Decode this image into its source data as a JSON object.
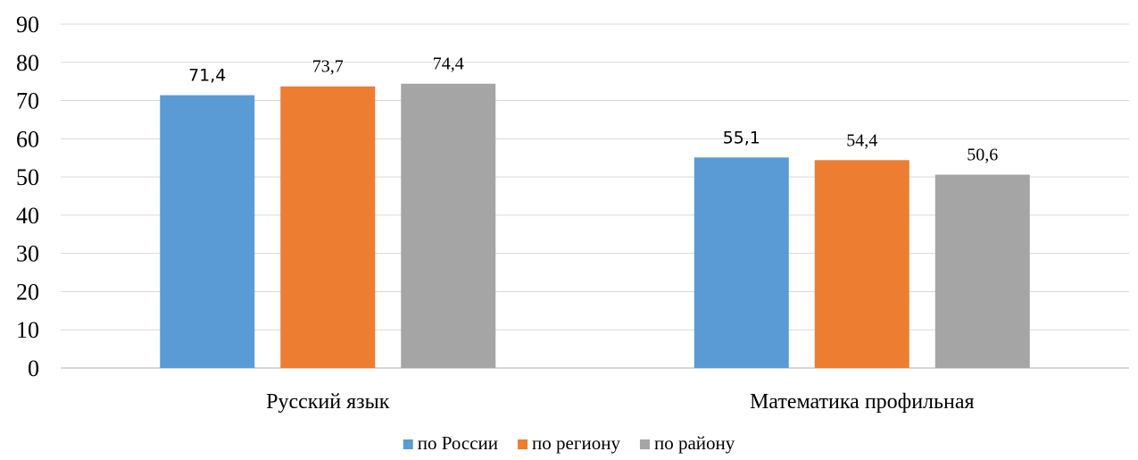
{
  "chart_data": {
    "type": "bar",
    "title": "",
    "xlabel": "",
    "ylabel": "",
    "ylim": [
      0,
      90
    ],
    "yticks": [
      0,
      10,
      20,
      30,
      40,
      50,
      60,
      70,
      80,
      90
    ],
    "grid": true,
    "legend_position": "bottom",
    "categories": [
      "Русский язык",
      "Математика профильная"
    ],
    "series": [
      {
        "name": "по России",
        "color": "#5b9bd5",
        "values": [
          71.4,
          55.1
        ],
        "labels": [
          "71,4",
          "55,1"
        ]
      },
      {
        "name": "по региону",
        "color": "#ed7d31",
        "values": [
          73.7,
          54.4
        ],
        "labels": [
          "73,7",
          "54,4"
        ]
      },
      {
        "name": "по району",
        "color": "#a5a5a5",
        "values": [
          74.4,
          50.6
        ],
        "labels": [
          "74,4",
          "50,6"
        ]
      }
    ]
  }
}
